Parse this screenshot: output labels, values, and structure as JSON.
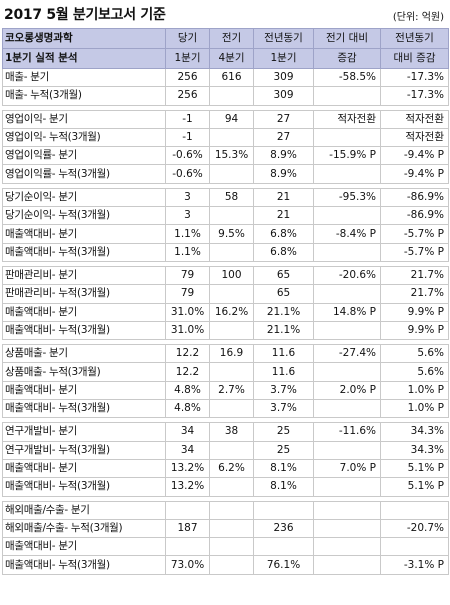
{
  "title": "2017 5월 분기보고서 기준",
  "unit": "(단위: 억원)",
  "header": {
    "company": "코오롱생명과학",
    "period": "1분기 실적 분석",
    "cols": [
      [
        "당기",
        "1분기"
      ],
      [
        "전기",
        "4분기"
      ],
      [
        "전년동기",
        "1분기"
      ],
      [
        "전기 대비",
        "증감"
      ],
      [
        "전년동기",
        "대비 증감"
      ]
    ]
  },
  "groups": [
    [
      [
        "매출- 분기",
        "256",
        "616",
        "309",
        "-58.5%",
        "-17.3%"
      ],
      [
        "매출- 누적(3개월)",
        "256",
        "",
        "309",
        "",
        "-17.3%"
      ]
    ],
    [
      [
        "영업이익- 분기",
        "-1",
        "94",
        "27",
        "적자전환",
        "적자전환"
      ],
      [
        "영업이익- 누적(3개월)",
        "-1",
        "",
        "27",
        "",
        "적자전환"
      ],
      [
        "영업이익률- 분기",
        "-0.6%",
        "15.3%",
        "8.9%",
        "-15.9% P",
        "-9.4% P"
      ],
      [
        "영업이익률- 누적(3개월)",
        "-0.6%",
        "",
        "8.9%",
        "",
        "-9.4% P"
      ]
    ],
    [
      [
        "당기순이익- 분기",
        "3",
        "58",
        "21",
        "-95.3%",
        "-86.9%"
      ],
      [
        "당기순이익- 누적(3개월)",
        "3",
        "",
        "21",
        "",
        "-86.9%"
      ],
      [
        "매출액대비- 분기",
        "1.1%",
        "9.5%",
        "6.8%",
        "-8.4% P",
        "-5.7% P"
      ],
      [
        "매출액대비- 누적(3개월)",
        "1.1%",
        "",
        "6.8%",
        "",
        "-5.7% P"
      ]
    ],
    [
      [
        "판매관리비- 분기",
        "79",
        "100",
        "65",
        "-20.6%",
        "21.7%"
      ],
      [
        "판매관리비- 누적(3개월)",
        "79",
        "",
        "65",
        "",
        "21.7%"
      ],
      [
        "매출액대비- 분기",
        "31.0%",
        "16.2%",
        "21.1%",
        "14.8% P",
        "9.9% P"
      ],
      [
        "매출액대비- 누적(3개월)",
        "31.0%",
        "",
        "21.1%",
        "",
        "9.9% P"
      ]
    ],
    [
      [
        "상품매출- 분기",
        "12.2",
        "16.9",
        "11.6",
        "-27.4%",
        "5.6%"
      ],
      [
        "상품매출- 누적(3개월)",
        "12.2",
        "",
        "11.6",
        "",
        "5.6%"
      ],
      [
        "매출액대비- 분기",
        "4.8%",
        "2.7%",
        "3.7%",
        "2.0% P",
        "1.0% P"
      ],
      [
        "매출액대비- 누적(3개월)",
        "4.8%",
        "",
        "3.7%",
        "",
        "1.0% P"
      ]
    ],
    [
      [
        "연구개발비- 분기",
        "34",
        "38",
        "25",
        "-11.6%",
        "34.3%"
      ],
      [
        "연구개발비- 누적(3개월)",
        "34",
        "",
        "25",
        "",
        "34.3%"
      ],
      [
        "매출액대비- 분기",
        "13.2%",
        "6.2%",
        "8.1%",
        "7.0% P",
        "5.1% P"
      ],
      [
        "매출액대비- 누적(3개월)",
        "13.2%",
        "",
        "8.1%",
        "",
        "5.1% P"
      ]
    ],
    [
      [
        "해외매출/수출- 분기",
        "",
        "",
        "",
        "",
        ""
      ],
      [
        "해외매출/수출- 누적(3개월)",
        "187",
        "",
        "236",
        "",
        "-20.7%"
      ],
      [
        "매출액대비- 분기",
        "",
        "",
        "",
        "",
        ""
      ],
      [
        "매출액대비- 누적(3개월)",
        "73.0%",
        "",
        "76.1%",
        "",
        "-3.1% P"
      ]
    ]
  ]
}
